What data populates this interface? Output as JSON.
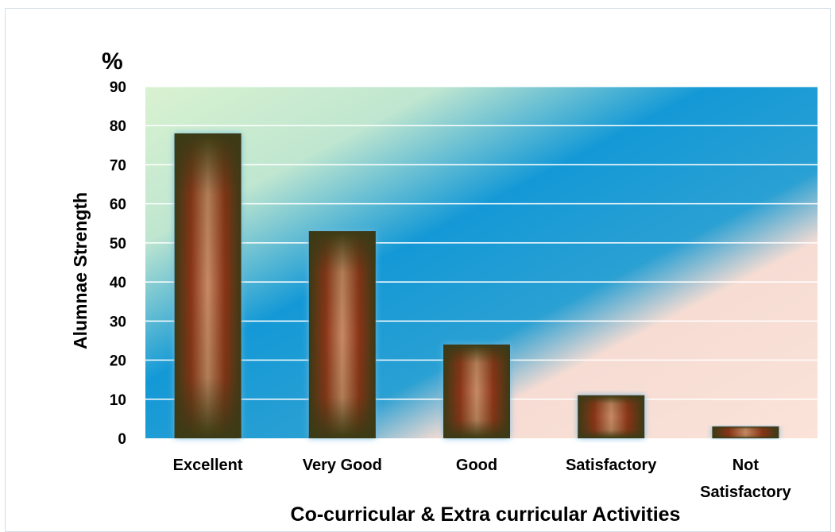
{
  "chart_data": {
    "type": "bar",
    "categories": [
      "Excellent",
      "Very Good",
      "Good",
      "Satisfactory",
      "Not Satisfactory"
    ],
    "category_lines": [
      [
        "Excellent"
      ],
      [
        "Very Good"
      ],
      [
        "Good"
      ],
      [
        "Satisfactory"
      ],
      [
        "Not",
        "Satisfactory"
      ]
    ],
    "values": [
      78,
      53,
      24,
      11,
      3
    ],
    "ylim": [
      0,
      90
    ],
    "yticks": [
      0,
      10,
      20,
      30,
      40,
      50,
      60,
      70,
      80,
      90
    ],
    "unit_label": "%",
    "ylabel": "Alumnae Strength",
    "xlabel": "Co-curricular & Extra curricular Activities",
    "grid": true,
    "colors": {
      "bar_dark": "#3a3a12",
      "bar_mid": "#a8361c",
      "bar_light": "#c9a07a",
      "bg_green": "#d9f2d0",
      "bg_blue": "#1499d6",
      "bg_peach": "#fbe3d9",
      "gridline": "#ffffff"
    }
  }
}
